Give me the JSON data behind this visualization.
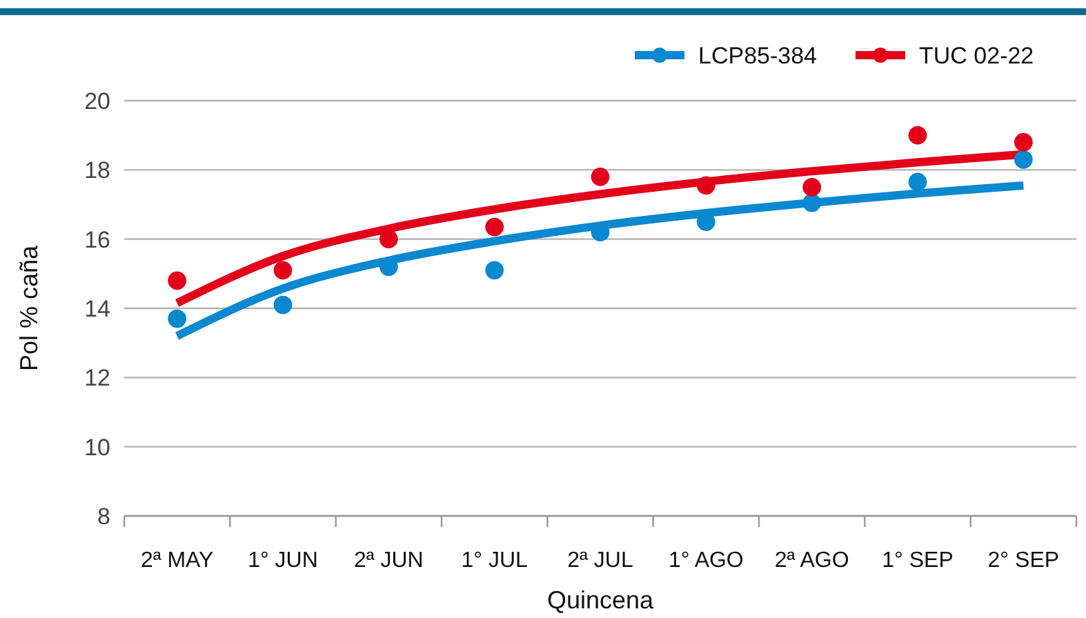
{
  "chart_data": {
    "type": "scatter",
    "xlabel": "Quincena",
    "ylabel": "Pol % caña",
    "categories": [
      "2ª MAY",
      "1° JUN",
      "2ª JUN",
      "1° JUL",
      "2ª JUL",
      "1° AGO",
      "2ª AGO",
      "1° SEP",
      "2° SEP"
    ],
    "ylim": [
      8,
      20
    ],
    "yticks": [
      8,
      10,
      12,
      14,
      16,
      18,
      20
    ],
    "grid": "y",
    "legend": "top right",
    "marker": "circle",
    "series": [
      {
        "type": "line",
        "color": "#0a88d0",
        "marker": "none",
        "values": [
          13.2,
          14.57,
          15.38,
          15.94,
          16.39,
          16.75,
          17.05,
          17.32,
          17.55
        ]
      },
      {
        "type": "line",
        "color": "#e2001a",
        "marker": "none",
        "values": [
          14.15,
          15.51,
          16.3,
          16.86,
          17.3,
          17.66,
          17.96,
          18.22,
          18.45
        ]
      },
      {
        "name": "LCP85-384",
        "color": "#0a88d0",
        "values": [
          13.7,
          14.1,
          15.2,
          15.1,
          16.2,
          16.5,
          17.05,
          17.65,
          18.3
        ]
      },
      {
        "name": "TUC 02-22",
        "color": "#e2001a",
        "values": [
          14.8,
          15.1,
          16.0,
          16.35,
          17.8,
          17.55,
          17.5,
          19.0,
          18.8
        ]
      }
    ]
  }
}
